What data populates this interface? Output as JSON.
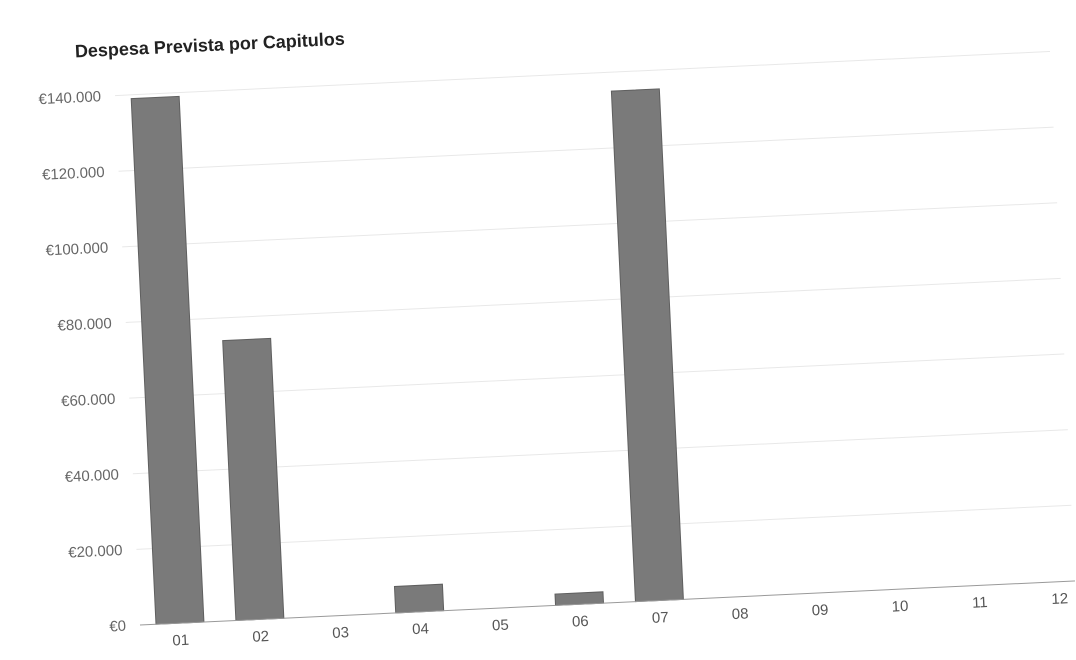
{
  "colors": {
    "bar": "#7a7a7a",
    "bar_stroke": "#5f5f5f"
  },
  "chart_data": {
    "type": "bar",
    "title": "Despesa Prevista por Capitulos",
    "xlabel": "",
    "ylabel": "",
    "categories": [
      "01",
      "02",
      "03",
      "04",
      "05",
      "06",
      "07",
      "08",
      "09",
      "10",
      "11",
      "12"
    ],
    "values": [
      139000,
      74000,
      0,
      7000,
      0,
      3000,
      135000,
      0,
      0,
      0,
      0,
      0
    ],
    "ylim": [
      0,
      140000
    ],
    "y_ticks": [
      0,
      20000,
      40000,
      60000,
      80000,
      100000,
      120000,
      140000
    ],
    "y_tick_labels": [
      "€0",
      "€20.000",
      "€40.000",
      "€60.000",
      "€80.000",
      "€100.000",
      "€120.000",
      "€140.000"
    ],
    "grid": true,
    "legend": "none"
  }
}
